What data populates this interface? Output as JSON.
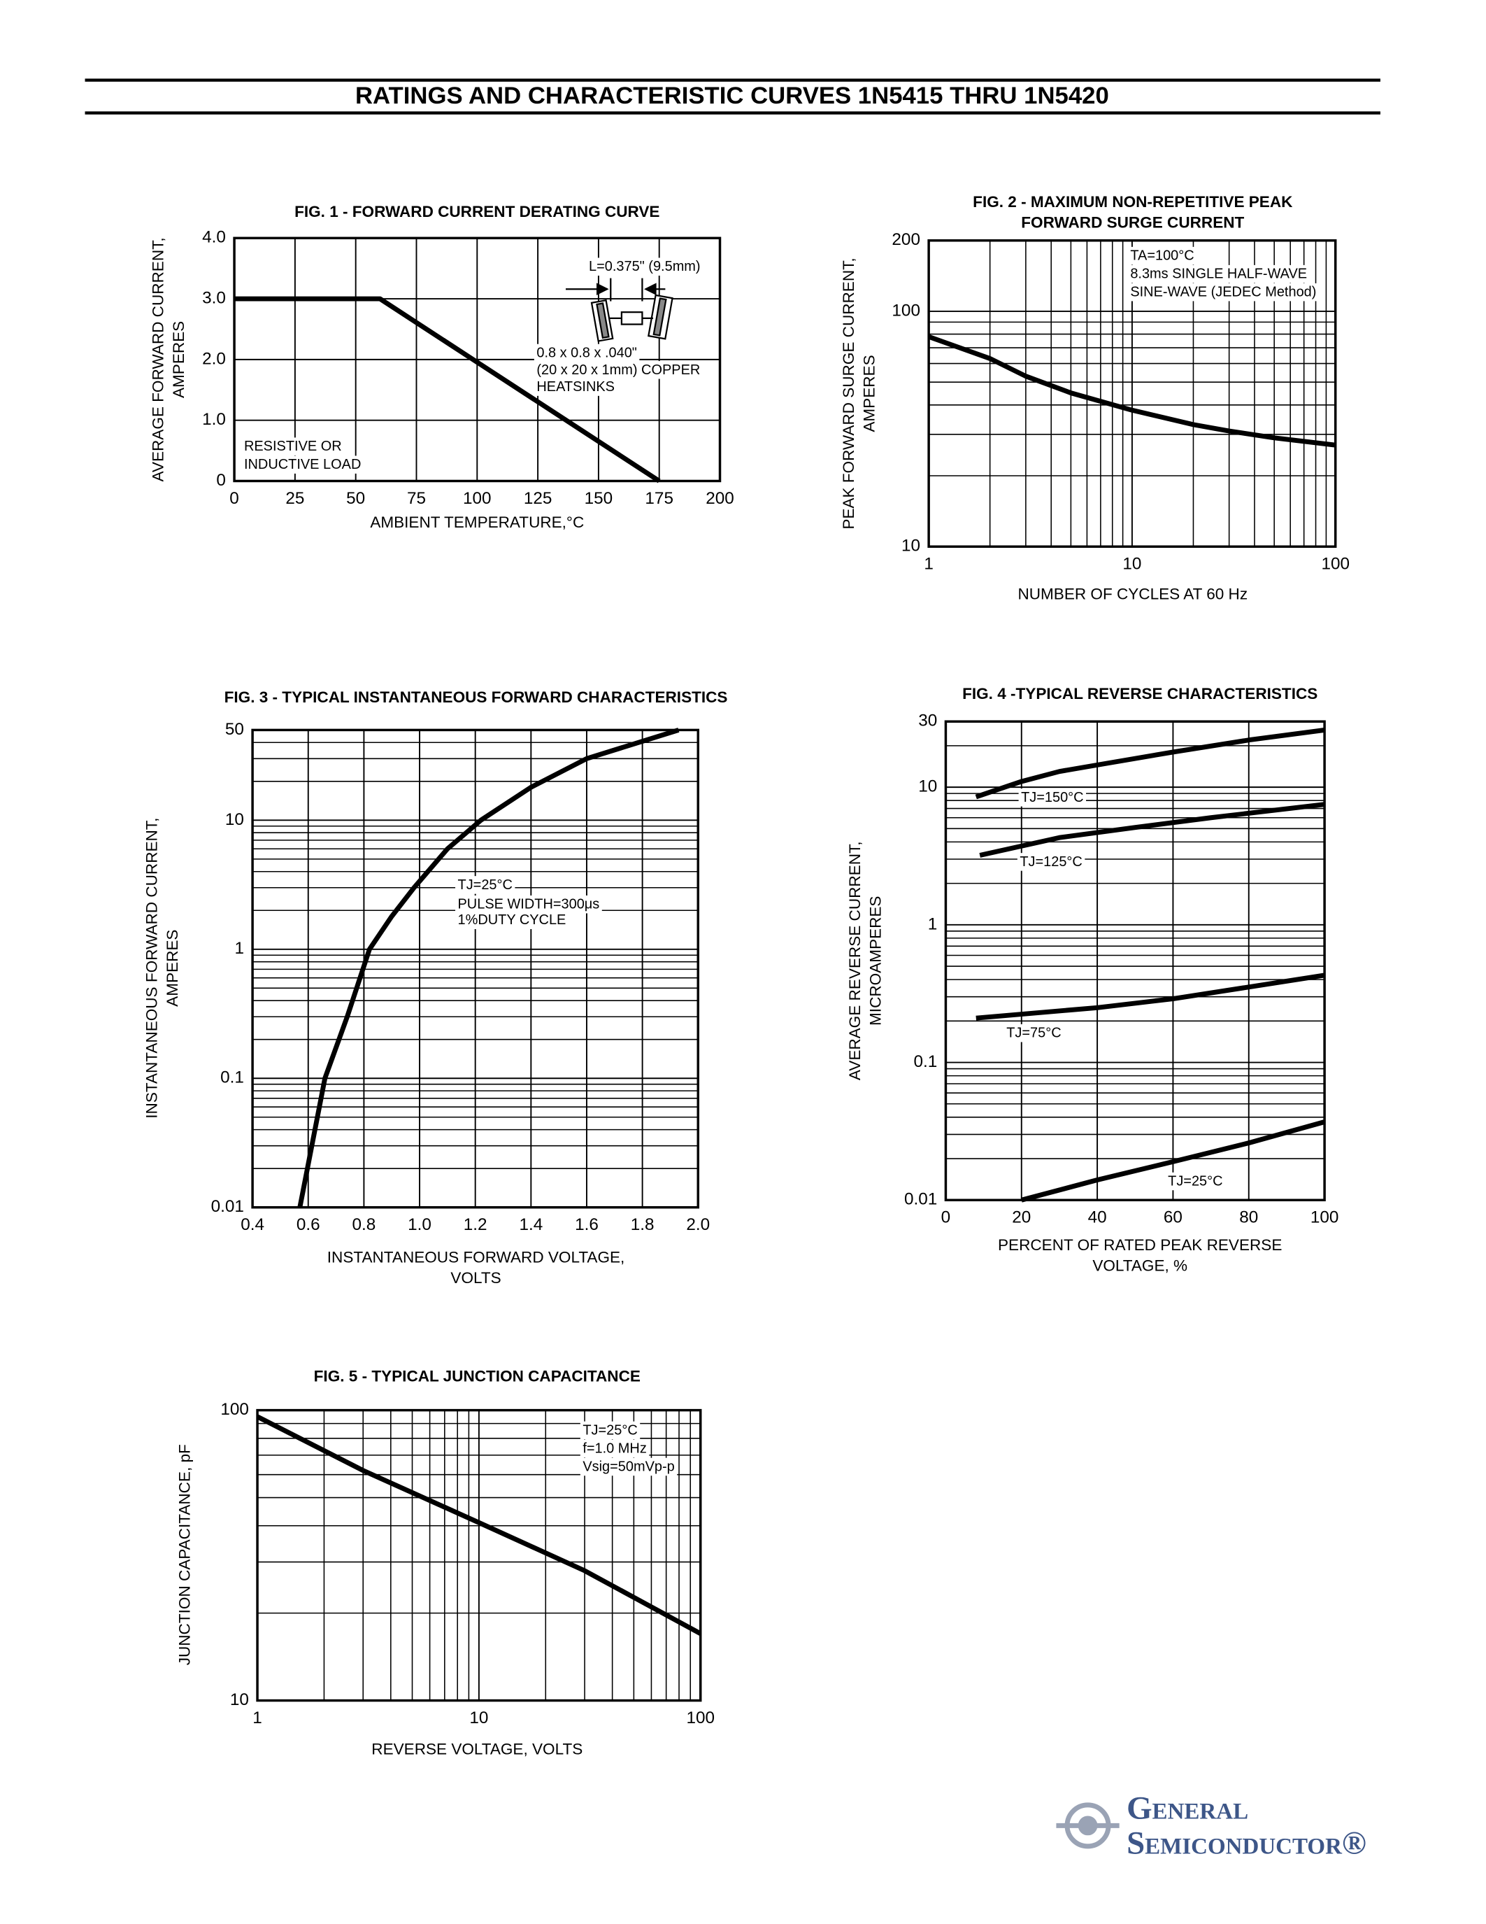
{
  "header": {
    "title": "RATINGS AND CHARACTERISTIC CURVES 1N5415 THRU 1N5420"
  },
  "chart_data": [
    {
      "type": "line",
      "title": [
        "FIG. 1 - FORWARD CURRENT DERATING CURVE"
      ],
      "x_label": [
        "AMBIENT TEMPERATURE,°C"
      ],
      "y_label": [
        "AVERAGE FORWARD CURRENT,",
        "AMPERES"
      ],
      "xlim": [
        0,
        200
      ],
      "xticks": [
        0,
        25,
        50,
        75,
        100,
        125,
        150,
        175,
        200
      ],
      "ylim": [
        0,
        4
      ],
      "yticks": [
        0,
        {
          "value": 1,
          "label": "1.0"
        },
        {
          "value": 2,
          "label": "2.0"
        },
        {
          "value": 3,
          "label": "3.0"
        },
        {
          "value": 4,
          "label": "4.0"
        }
      ],
      "grid": true,
      "series": [
        {
          "color": "#000000",
          "x": [
            0,
            60,
            175
          ],
          "values": [
            3,
            3,
            0
          ]
        }
      ],
      "annotations": [
        "L=0.375\" (9.5mm)",
        "0.8 x 0.8 x .040\"",
        "(20 x 20 x 1mm) COPPER",
        "HEATSINKS",
        "RESISTIVE OR",
        "INDUCTIVE LOAD"
      ]
    },
    {
      "type": "line",
      "title": [
        "FIG. 2 - MAXIMUM NON-REPETITIVE PEAK",
        "FORWARD SURGE CURRENT"
      ],
      "x_label": [
        "NUMBER OF CYCLES AT 60 Hz"
      ],
      "y_label": [
        "PEAK FORWARD SURGE CURRENT,",
        "AMPERES"
      ],
      "xscale": "log",
      "yscale": "log",
      "xlim": [
        1,
        100
      ],
      "xticks": [
        1,
        10,
        100
      ],
      "ylim": [
        10,
        200
      ],
      "yticks": [
        10,
        100,
        200
      ],
      "grid": true,
      "minor_grid": true,
      "series": [
        {
          "color": "#000000",
          "x": [
            1,
            2,
            3,
            5,
            10,
            20,
            30,
            50,
            100
          ],
          "values": [
            78,
            63,
            53,
            45,
            38,
            33,
            31,
            29,
            27
          ]
        }
      ],
      "annotations": [
        "TA=100°C",
        "8.3ms SINGLE HALF-WAVE",
        "SINE-WAVE (JEDEC Method)"
      ]
    },
    {
      "type": "line",
      "title": [
        "FIG. 3 - TYPICAL INSTANTANEOUS FORWARD CHARACTERISTICS"
      ],
      "x_label": [
        "INSTANTANEOUS FORWARD VOLTAGE,",
        "VOLTS"
      ],
      "y_label": [
        "INSTANTANEOUS FORWARD CURRENT,",
        "AMPERES"
      ],
      "yscale": "log",
      "xlim": [
        0.4,
        2.0
      ],
      "xticks": [
        0.4,
        0.6,
        0.8,
        {
          "value": 1,
          "label": "1.0"
        },
        1.2,
        1.4,
        1.6,
        1.8,
        {
          "value": 2,
          "label": "2.0"
        }
      ],
      "ylim": [
        0.01,
        50
      ],
      "yticks": [
        0.01,
        0.1,
        1,
        10,
        50
      ],
      "grid": true,
      "minor_grid": true,
      "series": [
        {
          "color": "#000000",
          "x": [
            0.57,
            0.66,
            0.74,
            0.82,
            0.9,
            0.98,
            1.1,
            1.22,
            1.4,
            1.6,
            1.93
          ],
          "values": [
            0.01,
            0.1,
            0.3,
            1,
            1.8,
            3,
            6,
            10,
            18,
            30,
            50
          ]
        }
      ],
      "annotations": [
        "TJ=25°C",
        "PULSE WIDTH=300μs",
        "1%DUTY CYCLE"
      ]
    },
    {
      "type": "line",
      "title": [
        "FIG. 4 -TYPICAL REVERSE CHARACTERISTICS"
      ],
      "x_label": [
        "PERCENT OF RATED PEAK REVERSE",
        "VOLTAGE, %"
      ],
      "y_label": [
        "AVERAGE REVERSE CURRENT,",
        "MICROAMPERES"
      ],
      "yscale": "log",
      "xlim": [
        0,
        100
      ],
      "xticks": [
        0,
        20,
        40,
        60,
        80,
        100
      ],
      "ylim": [
        0.01,
        30
      ],
      "yticks": [
        0.01,
        0.1,
        1,
        10,
        30
      ],
      "grid": true,
      "minor_grid": true,
      "series": [
        {
          "name": "TJ=150°C",
          "color": "#000000",
          "x": [
            8,
            20,
            30,
            40,
            60,
            80,
            100
          ],
          "values": [
            8.5,
            11,
            13,
            14.5,
            18,
            22,
            26
          ]
        },
        {
          "name": "TJ=125°C",
          "color": "#000000",
          "x": [
            9,
            30,
            50,
            70,
            100
          ],
          "values": [
            3.2,
            4.3,
            5.1,
            6,
            7.5
          ]
        },
        {
          "name": "TJ=75°C",
          "color": "#000000",
          "x": [
            8,
            40,
            60,
            100
          ],
          "values": [
            0.21,
            0.25,
            0.29,
            0.43
          ]
        },
        {
          "name": "TJ=25°C",
          "color": "#000000",
          "x": [
            20,
            40,
            60,
            80,
            100
          ],
          "values": [
            0.01,
            0.014,
            0.019,
            0.026,
            0.037
          ]
        }
      ]
    },
    {
      "type": "line",
      "title": [
        "FIG. 5 - TYPICAL JUNCTION CAPACITANCE"
      ],
      "x_label": [
        "REVERSE VOLTAGE, VOLTS"
      ],
      "y_label": [
        "JUNCTION CAPACITANCE, pF"
      ],
      "xscale": "log",
      "yscale": "log",
      "xlim": [
        1,
        100
      ],
      "xticks": [
        1,
        10,
        100
      ],
      "ylim": [
        10,
        100
      ],
      "yticks": [
        10,
        100
      ],
      "grid": true,
      "minor_grid": true,
      "series": [
        {
          "color": "#000000",
          "x": [
            1,
            3,
            10,
            30,
            100
          ],
          "values": [
            95,
            62,
            41,
            28,
            17
          ]
        }
      ],
      "annotations": [
        "TJ=25°C",
        "f=1.0 MHz",
        "Vsig=50mVp-p"
      ]
    }
  ],
  "logo": {
    "line1": "General",
    "line2": "Semiconductor®"
  }
}
